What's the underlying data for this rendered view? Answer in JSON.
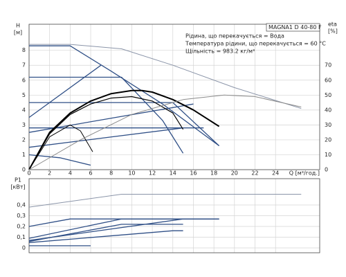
{
  "chart_data": [
    {
      "type": "line",
      "title": "MAGNA1 D 40-80 F",
      "info": [
        "Рідина, що перекачується = Вода",
        "Температура рідини, що перекачується = 60 °C",
        "Щільність = 983.2 кг/м³"
      ],
      "y_label": "H",
      "y_unit": "[м]",
      "y2_label": "eta",
      "y2_unit": "[%]",
      "x_label": "Q [м³/год.]",
      "xlim": [
        0,
        28.3
      ],
      "xticks": [
        0,
        2,
        4,
        6,
        8,
        10,
        12,
        14,
        16,
        18,
        20,
        22,
        24
      ],
      "ylim": [
        0,
        9.75
      ],
      "yticks": [
        0,
        1,
        2,
        3,
        4,
        5,
        6,
        7,
        8
      ],
      "y2lim": [
        0,
        97.5
      ],
      "y2ticks": [
        0,
        10,
        20,
        30,
        40,
        50,
        60,
        70
      ],
      "grid": true,
      "series": [
        {
          "color": "#8a94a8",
          "width": 1,
          "x": [
            0,
            4,
            9,
            14,
            20,
            26.5
          ],
          "values": [
            8.4,
            8.4,
            8.1,
            7,
            5.5,
            4.1
          ]
        },
        {
          "color": "#2f4f86",
          "width": 1.3,
          "x": [
            0,
            4,
            8,
            13,
            18.5
          ],
          "values": [
            8.3,
            8.3,
            6.6,
            4.4,
            1.6
          ]
        },
        {
          "color": "#2f4f86",
          "width": 1.3,
          "x": [
            0,
            9,
            13,
            15
          ],
          "values": [
            6.2,
            6.2,
            3.3,
            1.1
          ]
        },
        {
          "color": "#2f4f86",
          "width": 1.3,
          "x": [
            0,
            14,
            18.5
          ],
          "values": [
            4.5,
            4.5,
            1.6
          ]
        },
        {
          "color": "#2f4f86",
          "width": 1.3,
          "x": [
            0,
            17
          ],
          "values": [
            2.8,
            2.8
          ]
        },
        {
          "color": "#2f4f86",
          "width": 1.3,
          "x": [
            0,
            7
          ],
          "values": [
            3.5,
            7
          ]
        },
        {
          "color": "#2f4f86",
          "width": 1.3,
          "x": [
            0,
            16
          ],
          "values": [
            2.5,
            4.4
          ]
        },
        {
          "color": "#2f4f86",
          "width": 1.3,
          "x": [
            0,
            15
          ],
          "values": [
            1.5,
            2.8
          ]
        },
        {
          "color": "#2f4f86",
          "width": 1.3,
          "x": [
            0,
            3,
            6
          ],
          "values": [
            1,
            0.8,
            0.3
          ]
        },
        {
          "color": "#000000",
          "width": 2,
          "axis": "y2",
          "x": [
            0,
            2,
            4,
            6,
            8,
            10,
            11,
            12,
            14,
            16,
            18.5
          ],
          "values": [
            0,
            25,
            38,
            46,
            51,
            53,
            53,
            52,
            47,
            40,
            29
          ]
        },
        {
          "color": "#000000",
          "width": 1.2,
          "axis": "y2",
          "x": [
            0,
            2,
            4,
            6,
            8,
            10,
            12,
            14,
            15
          ],
          "values": [
            0,
            24,
            37,
            44,
            48,
            49,
            46,
            38,
            27
          ]
        },
        {
          "color": "#000000",
          "width": 1,
          "axis": "y2",
          "x": [
            0,
            2,
            4,
            5,
            6.2
          ],
          "values": [
            0,
            22,
            30,
            26,
            12
          ]
        },
        {
          "color": "#8a8a8a",
          "width": 1,
          "axis": "y2",
          "x": [
            0,
            5,
            10,
            15,
            19,
            22,
            26.5
          ],
          "values": [
            0,
            20,
            37,
            47,
            50,
            49,
            42
          ]
        }
      ]
    },
    {
      "type": "line",
      "y_label": "P1",
      "y_unit": "[кВт]",
      "xlim": [
        0,
        28.3
      ],
      "xticks": [
        0,
        2,
        4,
        6,
        8,
        10,
        12,
        14,
        16,
        18,
        20,
        22,
        24
      ],
      "ylim": [
        -0.045,
        0.645
      ],
      "yticks": [
        0,
        {
          "value": 0.1,
          "label": "0,1"
        },
        {
          "value": 0.2,
          "label": "0,2"
        },
        {
          "value": 0.3,
          "label": "0,3"
        },
        {
          "value": 0.4,
          "label": "0,4"
        }
      ],
      "grid": true,
      "series": [
        {
          "color": "#8a94a8",
          "width": 1,
          "x": [
            0,
            9,
            26.5
          ],
          "values": [
            0.38,
            0.5,
            0.5
          ]
        },
        {
          "color": "#2f4f86",
          "width": 1.3,
          "x": [
            0,
            4,
            18.5
          ],
          "values": [
            0.2,
            0.27,
            0.27
          ]
        },
        {
          "color": "#2f4f86",
          "width": 1.3,
          "x": [
            0,
            9,
            18.5
          ],
          "values": [
            0.09,
            0.27,
            0.27
          ]
        },
        {
          "color": "#2f4f86",
          "width": 1.3,
          "x": [
            0,
            9,
            15
          ],
          "values": [
            0.06,
            0.22,
            0.22
          ]
        },
        {
          "color": "#2f4f86",
          "width": 1.3,
          "x": [
            0,
            15,
            18.5
          ],
          "values": [
            0.07,
            0.27,
            0.27
          ]
        },
        {
          "color": "#2f4f86",
          "width": 1.3,
          "x": [
            0,
            14,
            15
          ],
          "values": [
            0.05,
            0.16,
            0.16
          ]
        },
        {
          "color": "#2f4f86",
          "width": 1.3,
          "x": [
            0,
            6
          ],
          "values": [
            0.02,
            0.02
          ]
        }
      ]
    }
  ]
}
